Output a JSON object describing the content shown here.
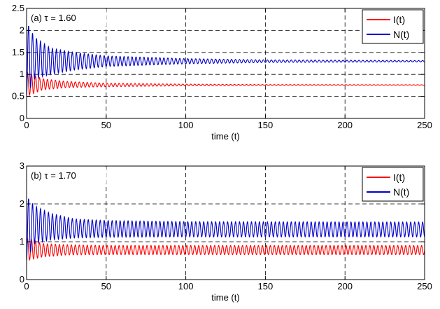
{
  "chart_data": [
    {
      "type": "line",
      "panel_label": "(a) τ = 1.60",
      "xlabel": "time (t)",
      "ylabel": "",
      "xlim": [
        0,
        250
      ],
      "ylim": [
        0,
        2.5
      ],
      "xticks": [
        "0",
        "50",
        "100",
        "150",
        "200",
        "250"
      ],
      "yticks": [
        "0",
        "0.5",
        "1",
        "1.5",
        "2",
        "2.5"
      ],
      "grid": true,
      "legend_position": "top-right",
      "oscillation_period": 2.5,
      "series": [
        {
          "name": "I(t)",
          "color": "#ff0000",
          "equilibrium": 0.76,
          "envelope": [
            {
              "t": 0,
              "min": 0.5,
              "max": 1.05
            },
            {
              "t": 10,
              "min": 0.65,
              "max": 0.9
            },
            {
              "t": 25,
              "min": 0.7,
              "max": 0.84
            },
            {
              "t": 50,
              "min": 0.72,
              "max": 0.8
            },
            {
              "t": 100,
              "min": 0.74,
              "max": 0.78
            },
            {
              "t": 150,
              "min": 0.75,
              "max": 0.77
            },
            {
              "t": 250,
              "min": 0.755,
              "max": 0.765
            }
          ]
        },
        {
          "name": "N(t)",
          "color": "#0000cc",
          "equilibrium": 1.3,
          "envelope": [
            {
              "t": 0,
              "min": 0.5,
              "max": 2.2
            },
            {
              "t": 5,
              "min": 0.9,
              "max": 1.85
            },
            {
              "t": 15,
              "min": 1.0,
              "max": 1.6
            },
            {
              "t": 30,
              "min": 1.1,
              "max": 1.5
            },
            {
              "t": 50,
              "min": 1.18,
              "max": 1.42
            },
            {
              "t": 100,
              "min": 1.24,
              "max": 1.36
            },
            {
              "t": 150,
              "min": 1.27,
              "max": 1.33
            },
            {
              "t": 250,
              "min": 1.285,
              "max": 1.315
            }
          ]
        }
      ]
    },
    {
      "type": "line",
      "panel_label": "(b) τ = 1.70",
      "xlabel": "time (t)",
      "ylabel": "",
      "xlim": [
        0,
        250
      ],
      "ylim": [
        0,
        3
      ],
      "xticks": [
        "0",
        "50",
        "100",
        "150",
        "200",
        "250"
      ],
      "yticks": [
        "0",
        "1",
        "2",
        "3"
      ],
      "grid": true,
      "legend_position": "top-right",
      "oscillation_period": 2.5,
      "series": [
        {
          "name": "I(t)",
          "color": "#ff0000",
          "equilibrium": 0.78,
          "envelope": [
            {
              "t": 0,
              "min": 0.5,
              "max": 1.1
            },
            {
              "t": 10,
              "min": 0.6,
              "max": 0.95
            },
            {
              "t": 25,
              "min": 0.65,
              "max": 0.92
            },
            {
              "t": 50,
              "min": 0.66,
              "max": 0.9
            },
            {
              "t": 250,
              "min": 0.66,
              "max": 0.9
            }
          ]
        },
        {
          "name": "N(t)",
          "color": "#0000cc",
          "equilibrium": 1.35,
          "envelope": [
            {
              "t": 0,
              "min": 0.5,
              "max": 2.2
            },
            {
              "t": 5,
              "min": 0.95,
              "max": 1.95
            },
            {
              "t": 15,
              "min": 1.05,
              "max": 1.75
            },
            {
              "t": 30,
              "min": 1.1,
              "max": 1.6
            },
            {
              "t": 50,
              "min": 1.12,
              "max": 1.56
            },
            {
              "t": 100,
              "min": 1.13,
              "max": 1.53
            },
            {
              "t": 250,
              "min": 1.13,
              "max": 1.52
            }
          ]
        }
      ]
    }
  ]
}
